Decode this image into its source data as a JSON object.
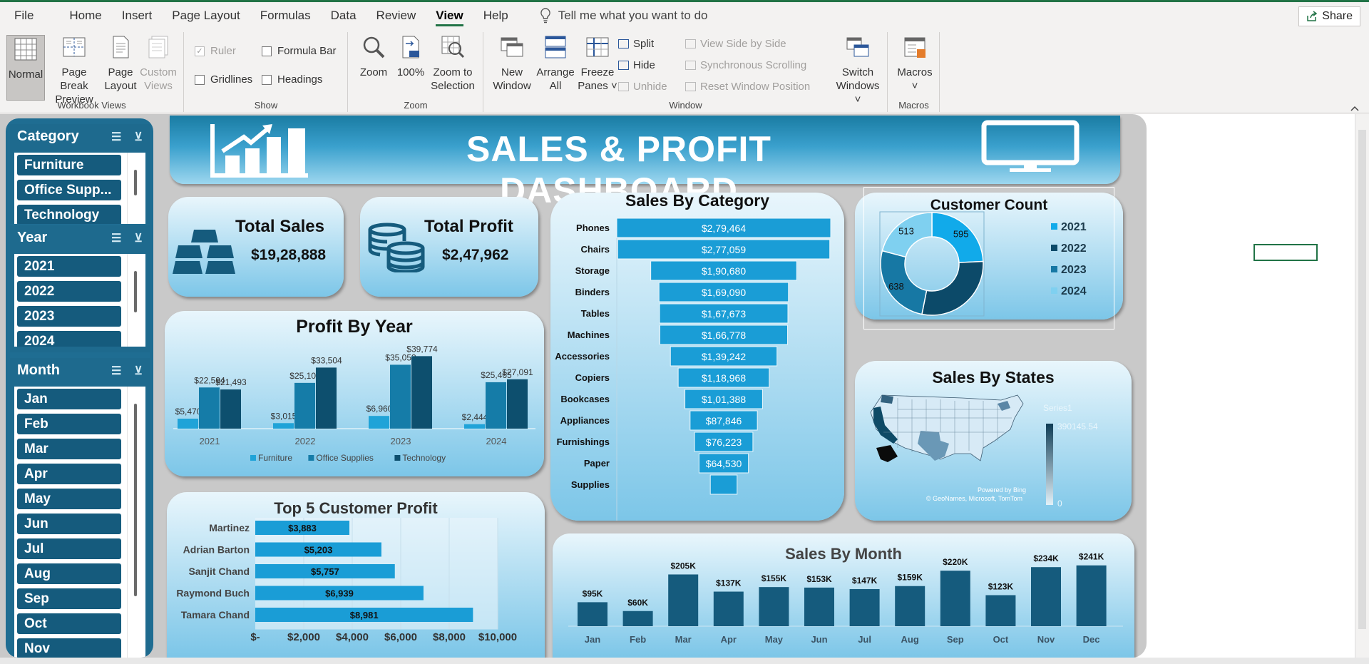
{
  "menu": {
    "items": [
      "File",
      "Home",
      "Insert",
      "Page Layout",
      "Formulas",
      "Data",
      "Review",
      "View",
      "Help"
    ],
    "active": "View",
    "tell_me": "Tell me what you want to do",
    "share": "Share"
  },
  "ribbon": {
    "workbook_views": {
      "label": "Workbook Views",
      "normal": "Normal",
      "page_break_1": "Page Break",
      "page_break_2": "Preview",
      "page_layout_1": "Page",
      "page_layout_2": "Layout",
      "custom_1": "Custom",
      "custom_2": "Views"
    },
    "show": {
      "label": "Show",
      "ruler": "Ruler",
      "formula_bar": "Formula Bar",
      "gridlines": "Gridlines",
      "headings": "Headings"
    },
    "zoom": {
      "label": "Zoom",
      "zoom": "Zoom",
      "hundred": "100%",
      "zoom_sel_1": "Zoom to",
      "zoom_sel_2": "Selection"
    },
    "window": {
      "label": "Window",
      "new_1": "New",
      "new_2": "Window",
      "arrange_1": "Arrange",
      "arrange_2": "All",
      "freeze_1": "Freeze",
      "freeze_2": "Panes ˅",
      "split": "Split",
      "hide": "Hide",
      "unhide": "Unhide",
      "side_by_side": "View Side by Side",
      "sync_scroll": "Synchronous Scrolling",
      "reset_pos": "Reset Window Position",
      "switch_1": "Switch",
      "switch_2": "Windows ˅"
    },
    "macros": {
      "label": "Macros",
      "macros": "Macros",
      "caret": "˅"
    }
  },
  "slicers": {
    "category": {
      "title": "Category",
      "items": [
        "Furniture",
        "Office Supp...",
        "Technology"
      ]
    },
    "year": {
      "title": "Year",
      "items": [
        "2021",
        "2022",
        "2023",
        "2024"
      ]
    },
    "month": {
      "title": "Month",
      "items": [
        "Jan",
        "Feb",
        "Mar",
        "Apr",
        "May",
        "Jun",
        "Jul",
        "Aug",
        "Sep",
        "Oct",
        "Nov"
      ]
    }
  },
  "dashboard": {
    "title": "SALES & PROFIT DASHBOARD",
    "total_sales_label": "Total Sales",
    "total_sales_value": "$19,28,888",
    "total_profit_label": "Total Profit",
    "total_profit_value": "$2,47,962"
  },
  "map": {
    "title": "Sales By States",
    "legend_series": "Series1",
    "legend_max": "390145.54",
    "legend_min": "0",
    "credit_1": "Powered by Bing",
    "credit_2": "© GeoNames, Microsoft, TomTom"
  },
  "chart_data": [
    {
      "id": "profit_by_year",
      "type": "bar",
      "title": "Profit By Year",
      "categories": [
        "2021",
        "2022",
        "2023",
        "2024"
      ],
      "series": [
        {
          "name": "Furniture",
          "values": [
            5470,
            3015,
            6960,
            2444
          ],
          "labels": [
            "$5,470",
            "$3,015",
            "$6,960",
            "$2,444"
          ],
          "color": "#1fa3d8"
        },
        {
          "name": "Office Supplies",
          "values": [
            22594,
            25101,
            35053,
            25465
          ],
          "labels": [
            "$22,594",
            "$25,101",
            "$35,053",
            "$25,465"
          ],
          "color": "#157ca8"
        },
        {
          "name": "Technology",
          "values": [
            21493,
            33504,
            39774,
            27091
          ],
          "labels": [
            "$21,493",
            "$33,504",
            "$39,774",
            "$27,091"
          ],
          "color": "#0d4f6e"
        }
      ]
    },
    {
      "id": "sales_by_category",
      "type": "bar",
      "title": "Sales By Category",
      "categories": [
        "Phones",
        "Chairs",
        "Storage",
        "Binders",
        "Tables",
        "Machines",
        "Accessories",
        "Copiers",
        "Bookcases",
        "Appliances",
        "Furnishings",
        "Paper",
        "Supplies"
      ],
      "values": [
        279464,
        277059,
        190680,
        169090,
        167673,
        166778,
        139242,
        118968,
        101388,
        87846,
        76223,
        64530,
        35000
      ],
      "labels": [
        "$2,79,464",
        "$2,77,059",
        "$1,90,680",
        "$1,69,090",
        "$1,67,673",
        "$1,66,778",
        "$1,39,242",
        "$1,18,968",
        "$1,01,388",
        "$87,846",
        "$76,223",
        "$64,530",
        ""
      ]
    },
    {
      "id": "customer_count",
      "type": "pie",
      "title": "Customer Count",
      "categories": [
        "2021",
        "2022",
        "2023",
        "2024"
      ],
      "values": [
        595,
        710,
        638,
        513
      ],
      "labels": [
        "595",
        "",
        "638",
        "513"
      ],
      "colors": [
        "#11aaea",
        "#0c4a69",
        "#1778a4",
        "#7fd0f0"
      ]
    },
    {
      "id": "top5_customer_profit",
      "type": "bar",
      "title": "Top 5 Customer Profit",
      "categories": [
        "Martinez",
        "Adrian Barton",
        "Sanjit Chand",
        "Raymond Buch",
        "Tamara Chand"
      ],
      "values": [
        3883,
        5203,
        5757,
        6939,
        8981
      ],
      "labels": [
        "$3,883",
        "$5,203",
        "$5,757",
        "$6,939",
        "$8,981"
      ],
      "xticks": [
        "$-",
        "$2,000",
        "$4,000",
        "$6,000",
        "$8,000",
        "$10,000"
      ],
      "xlim": [
        0,
        10000
      ]
    },
    {
      "id": "sales_by_month",
      "type": "bar",
      "title": "Sales By Month",
      "categories": [
        "Jan",
        "Feb",
        "Mar",
        "Apr",
        "May",
        "Jun",
        "Jul",
        "Aug",
        "Sep",
        "Oct",
        "Nov",
        "Dec"
      ],
      "values": [
        95,
        60,
        205,
        137,
        155,
        153,
        147,
        159,
        220,
        123,
        234,
        241
      ],
      "labels": [
        "$95K",
        "$60K",
        "$205K",
        "$137K",
        "$155K",
        "$153K",
        "$147K",
        "$159K",
        "$220K",
        "$123K",
        "$234K",
        "$241K"
      ]
    }
  ]
}
